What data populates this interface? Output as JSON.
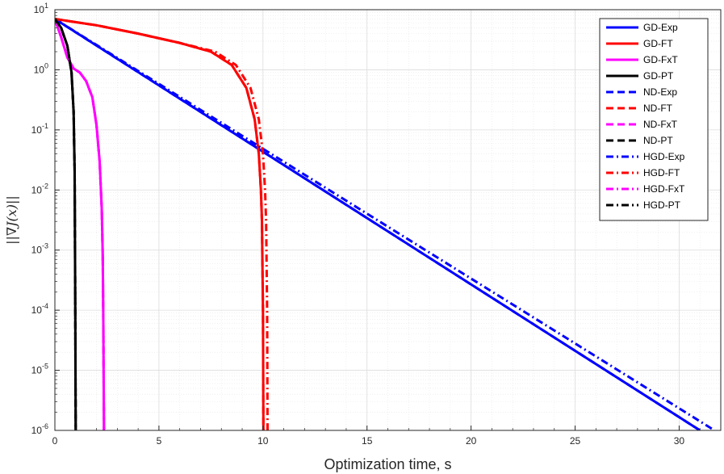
{
  "chart_data": {
    "type": "line",
    "xlabel": "Optimization time, s",
    "ylabel": "||∇J(x)||",
    "xlim": [
      0,
      32
    ],
    "ylim": [
      1e-06,
      10
    ],
    "yscale": "log",
    "grid": true,
    "legend_position": "top-right",
    "x_ticks": [
      0,
      5,
      10,
      15,
      20,
      25,
      30
    ],
    "y_ticks": [
      {
        "value": 1e-06,
        "base": "10",
        "exp": "-6"
      },
      {
        "value": 1e-05,
        "base": "10",
        "exp": "-5"
      },
      {
        "value": 0.0001,
        "base": "10",
        "exp": "-4"
      },
      {
        "value": 0.001,
        "base": "10",
        "exp": "-3"
      },
      {
        "value": 0.01,
        "base": "10",
        "exp": "-2"
      },
      {
        "value": 0.1,
        "base": "10",
        "exp": "-1"
      },
      {
        "value": 1,
        "base": "10",
        "exp": "0"
      },
      {
        "value": 10,
        "base": "10",
        "exp": "1"
      }
    ],
    "series": [
      {
        "name": "GD-Exp",
        "color": "#0000ff",
        "dash": "solid",
        "x": [
          0,
          31
        ],
        "y": [
          7,
          1e-06
        ]
      },
      {
        "name": "GD-FT",
        "color": "#ff0000",
        "dash": "solid",
        "x": [
          0,
          2,
          4,
          6,
          7.5,
          8.5,
          9.2,
          9.6,
          9.8,
          9.9,
          9.95,
          10.0,
          10.02
        ],
        "y": [
          7,
          5.5,
          4,
          2.8,
          2,
          1.2,
          0.5,
          0.15,
          0.04,
          0.01,
          0.003,
          0.0001,
          1e-06
        ]
      },
      {
        "name": "GD-FxT",
        "color": "#ff00ff",
        "dash": "solid",
        "x": [
          0,
          0.3,
          0.6,
          0.9,
          1.2,
          1.5,
          1.8,
          2.0,
          2.15,
          2.25,
          2.3,
          2.33,
          2.35,
          2.36
        ],
        "y": [
          7,
          3.5,
          1.6,
          1.05,
          0.9,
          0.65,
          0.35,
          0.12,
          0.03,
          0.005,
          0.0008,
          5e-05,
          3e-06,
          1e-06
        ]
      },
      {
        "name": "GD-PT",
        "color": "#000000",
        "dash": "solid",
        "x": [
          0,
          0.3,
          0.6,
          0.8,
          0.9,
          0.95,
          0.98,
          1.0
        ],
        "y": [
          7,
          5,
          2.5,
          0.9,
          0.2,
          0.02,
          0.0001,
          1e-06
        ]
      },
      {
        "name": "ND-Exp",
        "color": "#0000ff",
        "dash": "dash",
        "x": [
          0,
          31
        ],
        "y": [
          7,
          1e-06
        ]
      },
      {
        "name": "ND-FT",
        "color": "#ff0000",
        "dash": "dash",
        "x": [
          0,
          2,
          4,
          6,
          7.5,
          8.5,
          9.2,
          9.6,
          9.8,
          9.9,
          9.95,
          10.0,
          10.02
        ],
        "y": [
          7,
          5.5,
          4,
          2.8,
          2,
          1.2,
          0.5,
          0.15,
          0.04,
          0.01,
          0.003,
          0.0001,
          1e-06
        ]
      },
      {
        "name": "ND-FxT",
        "color": "#ff00ff",
        "dash": "dash",
        "x": [
          0,
          0.3,
          0.6,
          0.9,
          1.2,
          1.5,
          1.8,
          2.0,
          2.15,
          2.25,
          2.3,
          2.33,
          2.35,
          2.36
        ],
        "y": [
          7,
          3.5,
          1.6,
          1.05,
          0.9,
          0.65,
          0.35,
          0.12,
          0.03,
          0.005,
          0.0008,
          5e-05,
          3e-06,
          1e-06
        ]
      },
      {
        "name": "ND-PT",
        "color": "#000000",
        "dash": "dash",
        "x": [
          0,
          0.3,
          0.6,
          0.8,
          0.9,
          0.95,
          0.98,
          1.0
        ],
        "y": [
          7,
          5,
          2.5,
          0.9,
          0.2,
          0.02,
          0.0001,
          1e-06
        ]
      },
      {
        "name": "HGD-Exp",
        "color": "#0000ff",
        "dash": "dashdot",
        "x": [
          0,
          31.7
        ],
        "y": [
          7,
          1e-06
        ]
      },
      {
        "name": "HGD-FT",
        "color": "#ff0000",
        "dash": "dashdot",
        "x": [
          0,
          2,
          4,
          6,
          7.7,
          8.7,
          9.4,
          9.8,
          10.0,
          10.1,
          10.15,
          10.2,
          10.22
        ],
        "y": [
          7,
          5.5,
          4,
          2.8,
          2,
          1.2,
          0.5,
          0.15,
          0.04,
          0.01,
          0.003,
          0.0001,
          1e-06
        ]
      },
      {
        "name": "HGD-FxT",
        "color": "#ff00ff",
        "dash": "dashdot",
        "x": [
          0,
          0.3,
          0.6,
          0.9,
          1.2,
          1.5,
          1.8,
          2.0,
          2.15,
          2.25,
          2.3,
          2.33,
          2.35,
          2.36
        ],
        "y": [
          7,
          3.5,
          1.6,
          1.05,
          0.9,
          0.65,
          0.35,
          0.12,
          0.03,
          0.005,
          0.0008,
          5e-05,
          3e-06,
          1e-06
        ]
      },
      {
        "name": "HGD-PT",
        "color": "#000000",
        "dash": "dashdot",
        "x": [
          0,
          0.3,
          0.6,
          0.8,
          0.9,
          0.95,
          0.98,
          1.0
        ],
        "y": [
          7,
          5,
          2.5,
          0.9,
          0.2,
          0.02,
          0.0001,
          1e-06
        ]
      }
    ]
  }
}
